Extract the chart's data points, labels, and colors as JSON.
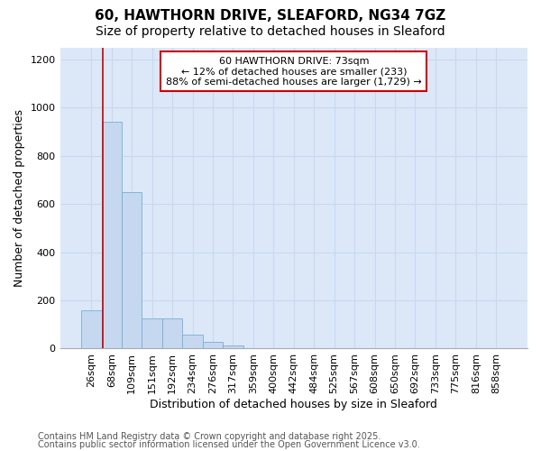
{
  "title1": "60, HAWTHORN DRIVE, SLEAFORD, NG34 7GZ",
  "title2": "Size of property relative to detached houses in Sleaford",
  "xlabel": "Distribution of detached houses by size in Sleaford",
  "ylabel": "Number of detached properties",
  "categories": [
    "26sqm",
    "68sqm",
    "109sqm",
    "151sqm",
    "192sqm",
    "234sqm",
    "276sqm",
    "317sqm",
    "359sqm",
    "400sqm",
    "442sqm",
    "484sqm",
    "525sqm",
    "567sqm",
    "608sqm",
    "650sqm",
    "692sqm",
    "733sqm",
    "775sqm",
    "816sqm",
    "858sqm"
  ],
  "values": [
    160,
    940,
    650,
    125,
    125,
    58,
    28,
    12,
    0,
    0,
    0,
    0,
    0,
    0,
    0,
    0,
    0,
    0,
    0,
    0,
    0
  ],
  "bar_color": "#c5d8f0",
  "bar_edge_color": "#7aadd4",
  "vline_x": 0.575,
  "annotation_text": "60 HAWTHORN DRIVE: 73sqm\n← 12% of detached houses are smaller (233)\n88% of semi-detached houses are larger (1,729) →",
  "annotation_box_facecolor": "#ffffff",
  "annotation_box_edgecolor": "#cc0000",
  "vline_color": "#cc0000",
  "ylim": [
    0,
    1250
  ],
  "yticks": [
    0,
    200,
    400,
    600,
    800,
    1000,
    1200
  ],
  "grid_color": "#c8d8f0",
  "plot_bg_color": "#dce8f8",
  "fig_bg_color": "#ffffff",
  "footer1": "Contains HM Land Registry data © Crown copyright and database right 2025.",
  "footer2": "Contains public sector information licensed under the Open Government Licence v3.0.",
  "title1_fontsize": 11,
  "title2_fontsize": 10,
  "xlabel_fontsize": 9,
  "ylabel_fontsize": 9,
  "annot_fontsize": 8,
  "tick_fontsize": 8,
  "footer_fontsize": 7
}
